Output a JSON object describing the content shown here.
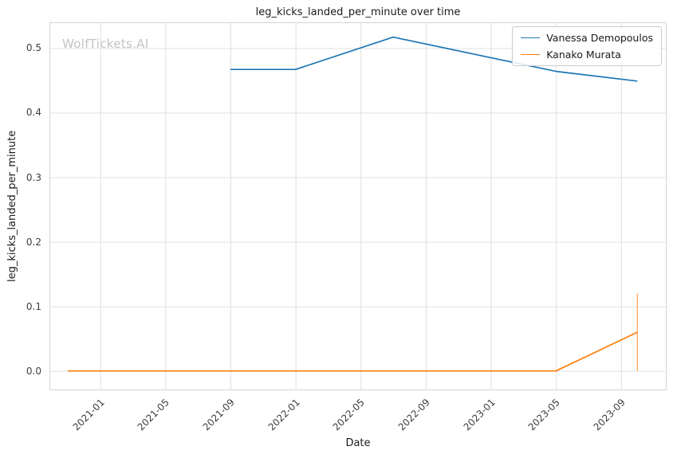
{
  "watermark": "WolfTickets.AI",
  "chart_data": {
    "type": "line",
    "title": "leg_kicks_landed_per_minute over time",
    "xlabel": "Date",
    "ylabel": "leg_kicks_landed_per_minute",
    "x_ticks": [
      "2021-01",
      "2021-05",
      "2021-09",
      "2022-01",
      "2022-05",
      "2022-09",
      "2023-01",
      "2023-05",
      "2023-09"
    ],
    "y_ticks": [
      "0.0",
      "0.1",
      "0.2",
      "0.3",
      "0.4",
      "0.5"
    ],
    "xlim": [
      2020.74,
      2023.9
    ],
    "ylim": [
      -0.03,
      0.54
    ],
    "grid": true,
    "grid_color": "#e0e0e0",
    "border_color": "#d4d4d4",
    "legend_position": "upper right",
    "series": [
      {
        "name": "Vanessa Demopoulos",
        "color": "#1f77b4",
        "points": [
          [
            "2021-09",
            0.467
          ],
          [
            "2022-01",
            0.467
          ],
          [
            "2022-07",
            0.517
          ],
          [
            "2023-05",
            0.464
          ],
          [
            "2023-10",
            0.449
          ]
        ]
      },
      {
        "name": "Kanako Murata",
        "color": "#ff7f0e",
        "points": [
          [
            "2020-11",
            0.0
          ],
          [
            "2023-05",
            0.0
          ],
          [
            "2023-10",
            0.06
          ]
        ],
        "error_bar": {
          "x": "2023-10",
          "low": 0.0,
          "high": 0.12
        }
      }
    ]
  }
}
